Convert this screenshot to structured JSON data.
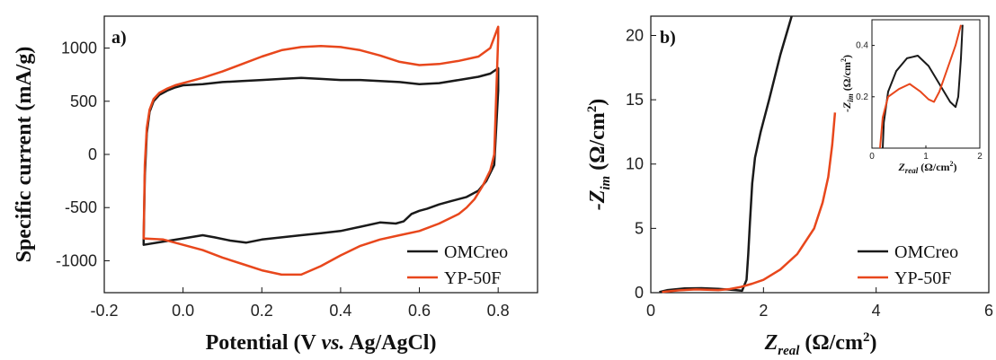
{
  "colors": {
    "OMCreo": "#1a1a1a",
    "YP-50F": "#e8471c"
  },
  "chart_data": [
    {
      "type": "line",
      "panel_label": "a)",
      "xlabel": {
        "pre": "Potential (V ",
        "italic": "vs.",
        "post": " Ag/AgCl)"
      },
      "ylabel": "Specific current (mA/g)",
      "xlim": [
        -0.2,
        0.9
      ],
      "ylim": [
        -1300,
        1300
      ],
      "xticks": [
        -0.2,
        0.0,
        0.2,
        0.4,
        0.6,
        0.8
      ],
      "xtick_labels": [
        "-0.2",
        "0.0",
        "0.2",
        "0.4",
        "0.6",
        "0.8"
      ],
      "yticks": [
        -1000,
        -500,
        0,
        500,
        1000
      ],
      "ytick_labels": [
        "-1000",
        "-500",
        "0",
        "500",
        "1000"
      ],
      "legend_position": "bottom-right",
      "series": [
        {
          "name": "OMCreo",
          "color": "#1a1a1a",
          "x": [
            -0.1,
            -0.097,
            -0.092,
            -0.085,
            -0.075,
            -0.06,
            -0.04,
            -0.02,
            0.0,
            0.05,
            0.1,
            0.15,
            0.2,
            0.25,
            0.3,
            0.35,
            0.4,
            0.45,
            0.5,
            0.55,
            0.6,
            0.65,
            0.7,
            0.75,
            0.78,
            0.8,
            0.8,
            0.79,
            0.77,
            0.75,
            0.72,
            0.68,
            0.65,
            0.62,
            0.6,
            0.58,
            0.56,
            0.54,
            0.5,
            0.45,
            0.4,
            0.35,
            0.3,
            0.25,
            0.2,
            0.16,
            0.12,
            0.08,
            0.05,
            0.0,
            -0.05,
            -0.1,
            -0.1
          ],
          "y": [
            -800,
            -200,
            200,
            400,
            500,
            560,
            600,
            630,
            650,
            660,
            680,
            690,
            700,
            710,
            720,
            710,
            700,
            700,
            690,
            680,
            660,
            670,
            700,
            730,
            760,
            810,
            600,
            -100,
            -250,
            -340,
            -400,
            -440,
            -470,
            -510,
            -530,
            -560,
            -630,
            -650,
            -640,
            -680,
            -720,
            -740,
            -760,
            -780,
            -800,
            -830,
            -810,
            -780,
            -760,
            -790,
            -820,
            -850,
            -800
          ]
        },
        {
          "name": "YP-50F",
          "color": "#e8471c",
          "x": [
            -0.1,
            -0.097,
            -0.092,
            -0.085,
            -0.075,
            -0.06,
            -0.04,
            -0.02,
            0.0,
            0.05,
            0.1,
            0.15,
            0.2,
            0.25,
            0.3,
            0.35,
            0.4,
            0.45,
            0.5,
            0.55,
            0.6,
            0.65,
            0.7,
            0.75,
            0.78,
            0.8,
            0.8,
            0.79,
            0.78,
            0.76,
            0.74,
            0.72,
            0.7,
            0.65,
            0.6,
            0.55,
            0.5,
            0.45,
            0.4,
            0.35,
            0.3,
            0.25,
            0.2,
            0.15,
            0.1,
            0.05,
            0.0,
            -0.05,
            -0.1,
            -0.1
          ],
          "y": [
            -780,
            -100,
            250,
            420,
            520,
            580,
            620,
            650,
            670,
            720,
            780,
            850,
            920,
            980,
            1010,
            1020,
            1010,
            980,
            930,
            870,
            840,
            850,
            880,
            920,
            1000,
            1200,
            1100,
            0,
            -150,
            -300,
            -420,
            -500,
            -560,
            -650,
            -720,
            -760,
            -800,
            -860,
            -950,
            -1050,
            -1130,
            -1130,
            -1090,
            -1030,
            -970,
            -900,
            -850,
            -800,
            -790,
            -780
          ]
        }
      ]
    },
    {
      "type": "line",
      "panel_label": "b)",
      "xlabel": {
        "main": "Z",
        "sub": "real",
        "units": " (Ω/cm",
        "sup": "2",
        "close": ")"
      },
      "ylabel": {
        "main": "-Z",
        "sub": "im",
        "units": " (Ω/cm",
        "sup": "2",
        "close": ")"
      },
      "xlim": [
        0,
        6
      ],
      "ylim": [
        0,
        21.5
      ],
      "xticks": [
        0,
        2,
        4,
        6
      ],
      "xtick_labels": [
        "0",
        "2",
        "4",
        "6"
      ],
      "yticks": [
        0,
        5,
        10,
        15,
        20
      ],
      "ytick_labels": [
        "0",
        "5",
        "10",
        "15",
        "20"
      ],
      "legend_position": "bottom-right",
      "series": [
        {
          "name": "OMCreo",
          "color": "#1a1a1a",
          "x": [
            0.15,
            0.3,
            0.6,
            0.9,
            1.2,
            1.5,
            1.62,
            1.7,
            1.73,
            1.76,
            1.8,
            1.85,
            1.95,
            2.1,
            2.3,
            2.5
          ],
          "y": [
            0.05,
            0.2,
            0.33,
            0.35,
            0.3,
            0.2,
            0.15,
            1.0,
            3.0,
            5.5,
            8.5,
            10.5,
            12.5,
            15.0,
            18.5,
            21.5
          ]
        },
        {
          "name": "YP-50F",
          "color": "#e8471c",
          "x": [
            0.2,
            0.5,
            0.8,
            1.0,
            1.2,
            1.4,
            1.6,
            1.8,
            2.0,
            2.3,
            2.6,
            2.9,
            3.05,
            3.15,
            3.22,
            3.27
          ],
          "y": [
            0.05,
            0.18,
            0.25,
            0.22,
            0.2,
            0.28,
            0.45,
            0.7,
            1.0,
            1.8,
            3.0,
            5.0,
            7.0,
            9.0,
            11.5,
            14.0
          ]
        }
      ],
      "inset": {
        "xlim": [
          0,
          2
        ],
        "ylim": [
          0,
          0.5
        ],
        "xticks": [
          0,
          1,
          2
        ],
        "xtick_labels": [
          "0",
          "1",
          "2"
        ],
        "yticks": [
          0.2,
          0.4
        ],
        "ytick_labels": [
          "0.2",
          "0.4"
        ],
        "xlabel": {
          "main": "Z",
          "sub": "real",
          "units": " (Ω/cm",
          "sup": "2",
          "close": ")"
        },
        "ylabel": {
          "main": "-Z",
          "sub": "im",
          "units": " (Ω/cm",
          "sup": "2",
          "close": ")"
        },
        "series": [
          {
            "name": "OMCreo",
            "color": "#1a1a1a",
            "x": [
              0.2,
              0.22,
              0.3,
              0.45,
              0.65,
              0.85,
              1.05,
              1.25,
              1.45,
              1.55,
              1.6,
              1.65,
              1.68
            ],
            "y": [
              0.0,
              0.1,
              0.22,
              0.3,
              0.35,
              0.36,
              0.32,
              0.25,
              0.18,
              0.16,
              0.2,
              0.35,
              0.48
            ]
          },
          {
            "name": "YP-50F",
            "color": "#e8471c",
            "x": [
              0.15,
              0.2,
              0.3,
              0.5,
              0.7,
              0.9,
              1.05,
              1.15,
              1.25,
              1.35,
              1.45,
              1.55,
              1.65
            ],
            "y": [
              0.0,
              0.12,
              0.2,
              0.23,
              0.25,
              0.22,
              0.19,
              0.18,
              0.22,
              0.28,
              0.34,
              0.4,
              0.48
            ]
          }
        ]
      }
    }
  ]
}
